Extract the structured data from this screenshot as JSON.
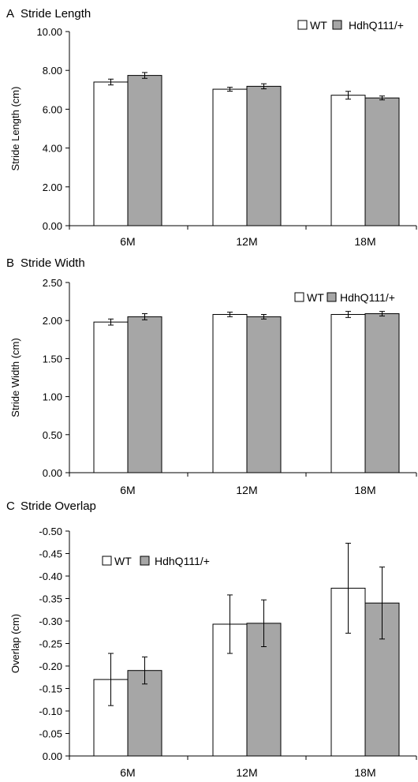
{
  "chart_data": [
    {
      "type": "bar",
      "panel_letter": "A",
      "title": "Stride Length",
      "xlabel": "",
      "ylabel": "Stride Length (cm)",
      "categories": [
        "6M",
        "12M",
        "18M"
      ],
      "ylim": [
        0,
        10
      ],
      "ytick_step": 2,
      "ytick_decimals": 2,
      "inverted_y": false,
      "legend_position": "top-right",
      "series": [
        {
          "name": "WT",
          "color": "#ffffff",
          "values": [
            7.4,
            7.03,
            6.72
          ],
          "errors": [
            0.15,
            0.1,
            0.2
          ]
        },
        {
          "name": "HdhQ111/+",
          "color": "#a6a6a6",
          "values": [
            7.74,
            7.18,
            6.58
          ],
          "errors": [
            0.15,
            0.13,
            0.1
          ]
        }
      ]
    },
    {
      "type": "bar",
      "panel_letter": "B",
      "title": "Stride Width",
      "xlabel": "",
      "ylabel": "Stride Width (cm)",
      "categories": [
        "6M",
        "12M",
        "18M"
      ],
      "ylim": [
        0,
        2.5
      ],
      "ytick_step": 0.5,
      "ytick_decimals": 2,
      "inverted_y": false,
      "legend_position": "top-right",
      "series": [
        {
          "name": "WT",
          "color": "#ffffff",
          "values": [
            1.98,
            2.08,
            2.08
          ],
          "errors": [
            0.04,
            0.03,
            0.04
          ]
        },
        {
          "name": "HdhQ111/+",
          "color": "#a6a6a6",
          "values": [
            2.05,
            2.05,
            2.09
          ],
          "errors": [
            0.04,
            0.03,
            0.03
          ]
        }
      ]
    },
    {
      "type": "bar",
      "panel_letter": "C",
      "title": "Stride Overlap",
      "xlabel": "",
      "ylabel": "Overlap (cm)",
      "categories": [
        "6M",
        "12M",
        "18M"
      ],
      "ylim": [
        0,
        -0.5
      ],
      "ytick_step": -0.05,
      "ytick_decimals": 2,
      "inverted_y": true,
      "legend_position": "top-left",
      "series": [
        {
          "name": "WT",
          "color": "#ffffff",
          "values": [
            -0.17,
            -0.293,
            -0.373
          ],
          "errors": [
            0.058,
            0.065,
            0.1
          ]
        },
        {
          "name": "HdhQ111/+",
          "color": "#a6a6a6",
          "values": [
            -0.19,
            -0.295,
            -0.34
          ],
          "errors": [
            0.03,
            0.052,
            0.08
          ]
        }
      ]
    }
  ]
}
